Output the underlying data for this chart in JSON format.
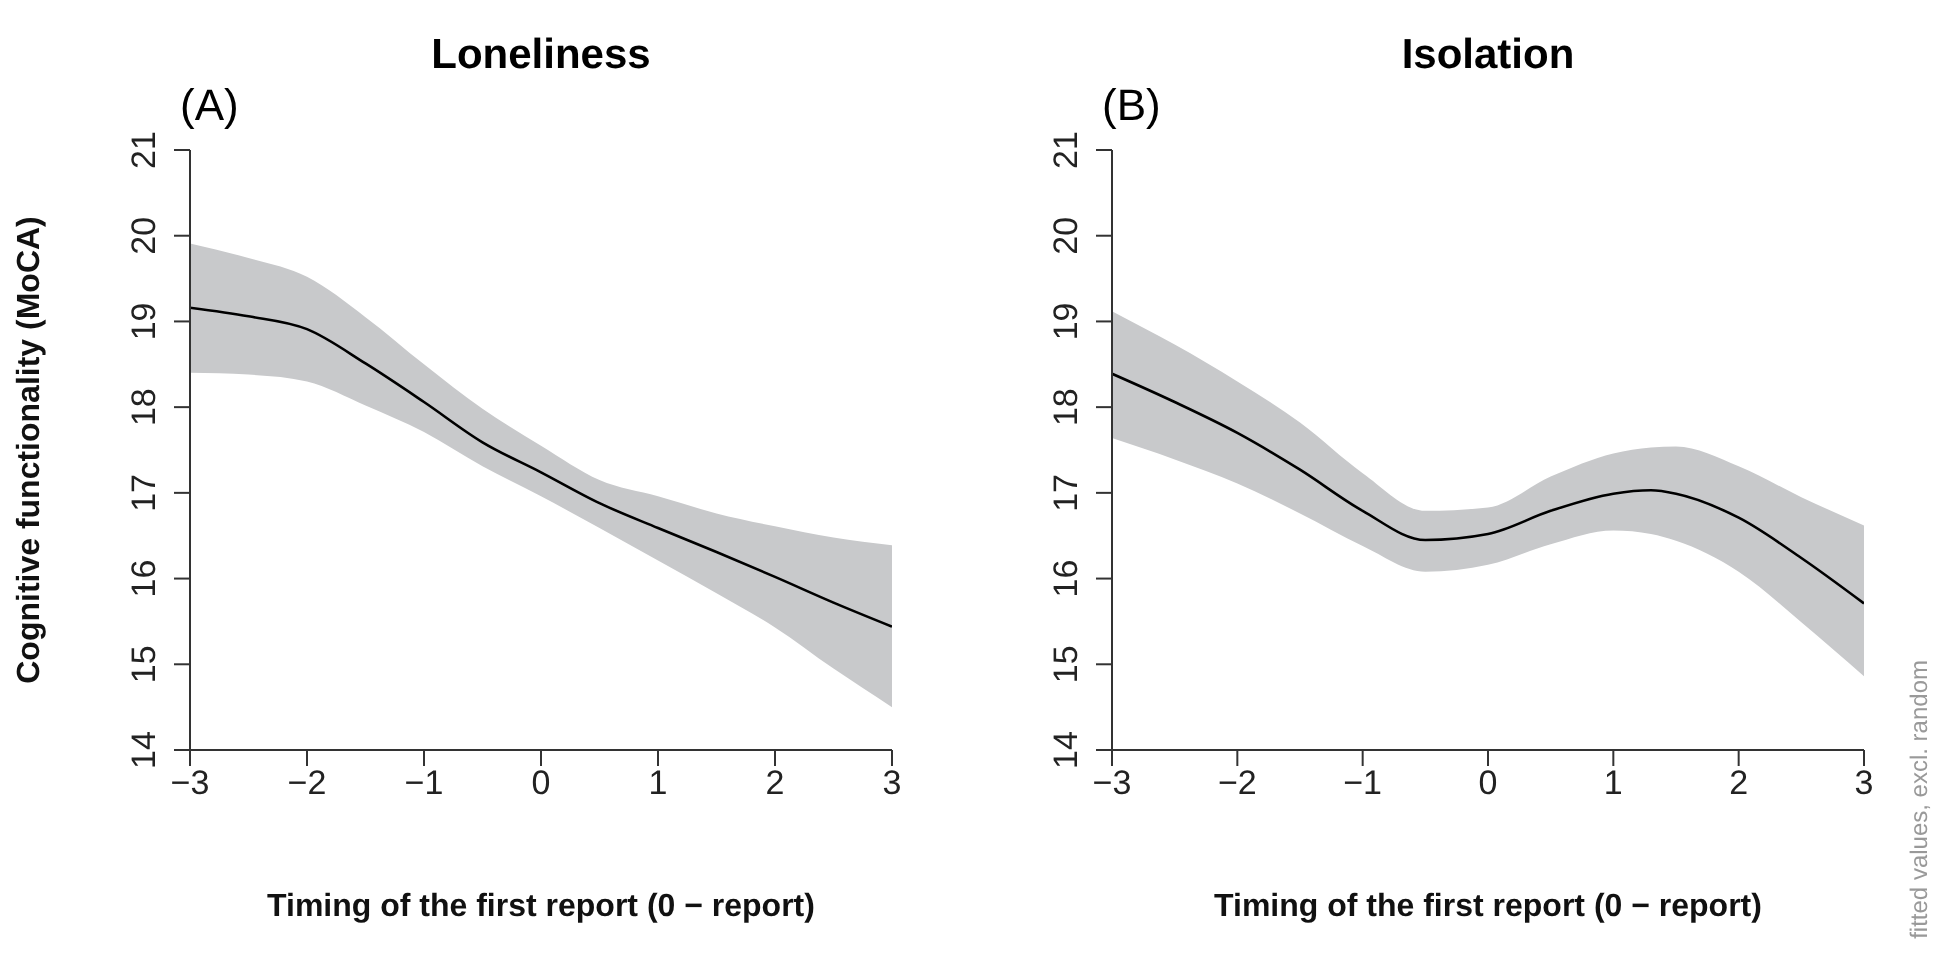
{
  "chart_data": [
    {
      "type": "line",
      "title": "Loneliness",
      "xlabel": "Timing of the first report (0 − report)",
      "ylabel": "Cognitive functionality (MoCA)",
      "annotations": [
        "(A)"
      ],
      "x": [
        -3,
        -2.5,
        -2,
        -1.5,
        -1,
        -0.5,
        0,
        0.5,
        1,
        1.5,
        2,
        2.5,
        3
      ],
      "series": [
        {
          "color": "#000000",
          "values": [
            19.16,
            19.06,
            18.91,
            18.51,
            18.06,
            17.59,
            17.24,
            16.88,
            16.59,
            16.31,
            16.02,
            15.72,
            15.44
          ],
          "lower": [
            18.4,
            18.38,
            18.3,
            18.02,
            17.71,
            17.31,
            16.96,
            16.59,
            16.21,
            15.83,
            15.43,
            14.95,
            14.5
          ],
          "upper": [
            19.91,
            19.74,
            19.52,
            19.05,
            18.5,
            17.98,
            17.55,
            17.15,
            16.96,
            16.76,
            16.61,
            16.48,
            16.39
          ]
        }
      ],
      "xlim": [
        -3,
        3
      ],
      "xticks": [
        {
          "value": -3,
          "label": "−3"
        },
        {
          "value": -2,
          "label": "−2"
        },
        {
          "value": -1,
          "label": "−1"
        },
        0,
        1,
        2,
        3
      ],
      "ylim": [
        14,
        21
      ],
      "yticks": [
        14,
        15,
        16,
        17,
        18,
        19,
        20,
        21
      ],
      "grid": false,
      "legend": false,
      "marker": "none",
      "line_style": "solid"
    },
    {
      "type": "line",
      "title": "Isolation",
      "xlabel": "Timing of the first report (0 − report)",
      "annotations": [
        "(B)",
        "fitted values, excl. random"
      ],
      "x": [
        -3,
        -2.5,
        -2,
        -1.5,
        -1,
        -0.5,
        0,
        0.5,
        1,
        1.3,
        1.5,
        2,
        2.5,
        3
      ],
      "series": [
        {
          "color": "#000000",
          "values": [
            18.39,
            18.06,
            17.7,
            17.27,
            16.79,
            16.45,
            16.52,
            16.79,
            16.99,
            17.03,
            16.99,
            16.71,
            16.24,
            15.71
          ],
          "lower": [
            17.64,
            17.39,
            17.11,
            16.76,
            16.38,
            16.08,
            16.16,
            16.4,
            16.56,
            16.52,
            16.44,
            16.08,
            15.49,
            14.86
          ],
          "upper": [
            19.12,
            18.73,
            18.3,
            17.82,
            17.23,
            16.79,
            16.83,
            17.19,
            17.46,
            17.53,
            17.54,
            17.31,
            16.95,
            16.62
          ]
        }
      ],
      "xlim": [
        -3,
        3
      ],
      "xticks": [
        {
          "value": -3,
          "label": "−3"
        },
        {
          "value": -2,
          "label": "−2"
        },
        {
          "value": -1,
          "label": "−1"
        },
        0,
        1,
        2,
        3
      ],
      "ylim": [
        14,
        21
      ],
      "yticks": [
        14,
        15,
        16,
        17,
        18,
        19,
        20,
        21
      ],
      "grid": false,
      "legend": false,
      "marker": "none",
      "line_style": "solid"
    }
  ]
}
